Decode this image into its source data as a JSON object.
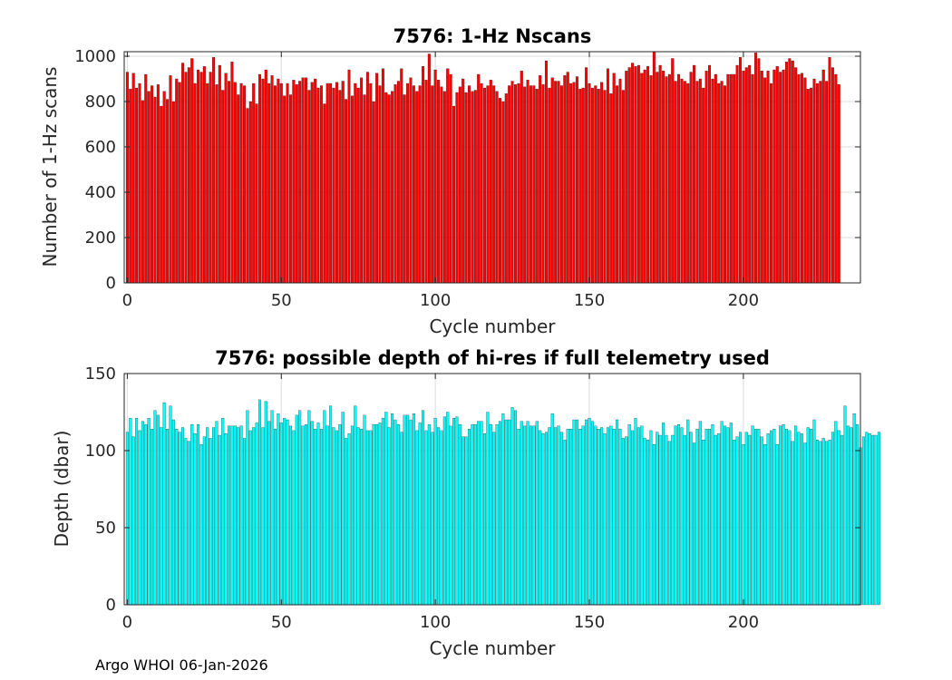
{
  "footer": "Argo WHOI 06-Jan-2026",
  "chart_data": [
    {
      "type": "bar",
      "title": "7576: 1-Hz Nscans",
      "xlabel": "Cycle number",
      "ylabel": "Number of 1-Hz scans",
      "xlim": [
        -1,
        238
      ],
      "ylim": [
        0,
        1020
      ],
      "xticks": [
        0,
        50,
        100,
        150,
        200
      ],
      "yticks": [
        0,
        200,
        400,
        600,
        800,
        1000
      ],
      "grid": true,
      "color": "#ff0000",
      "edge_color": "#000000",
      "x_start": 0,
      "values": [
        930,
        855,
        925,
        860,
        880,
        805,
        920,
        845,
        870,
        820,
        875,
        780,
        845,
        810,
        915,
        800,
        900,
        885,
        970,
        930,
        950,
        990,
        880,
        940,
        930,
        955,
        880,
        930,
        995,
        875,
        960,
        850,
        925,
        890,
        975,
        885,
        830,
        880,
        870,
        770,
        800,
        880,
        790,
        920,
        900,
        940,
        880,
        915,
        870,
        900,
        880,
        825,
        880,
        830,
        895,
        875,
        890,
        905,
        905,
        850,
        885,
        900,
        860,
        870,
        790,
        880,
        880,
        860,
        885,
        850,
        890,
        810,
        940,
        825,
        880,
        860,
        905,
        830,
        930,
        880,
        800,
        925,
        870,
        945,
        840,
        830,
        845,
        875,
        890,
        945,
        830,
        880,
        905,
        870,
        845,
        870,
        955,
        895,
        1010,
        870,
        940,
        895,
        865,
        845,
        945,
        920,
        780,
        840,
        865,
        900,
        840,
        870,
        845,
        850,
        920,
        880,
        860,
        870,
        895,
        870,
        845,
        815,
        800,
        835,
        870,
        890,
        875,
        880,
        935,
        865,
        895,
        870,
        870,
        855,
        915,
        875,
        980,
        860,
        905,
        890,
        890,
        870,
        915,
        930,
        880,
        885,
        910,
        855,
        860,
        950,
        880,
        860,
        870,
        855,
        885,
        850,
        945,
        835,
        925,
        870,
        900,
        850,
        935,
        950,
        970,
        955,
        960,
        925,
        940,
        955,
        915,
        1025,
        930,
        960,
        935,
        910,
        920,
        990,
        890,
        920,
        900,
        890,
        880,
        930,
        960,
        890,
        900,
        860,
        935,
        960,
        900,
        920,
        880,
        890,
        870,
        920,
        920,
        920,
        960,
        995,
        935,
        950,
        960,
        920,
        1015,
        990,
        935,
        905,
        935,
        880,
        940,
        955,
        930,
        940,
        975,
        990,
        980,
        950,
        920,
        925,
        905,
        855,
        860,
        900,
        880,
        890,
        940,
        890,
        995,
        950,
        920,
        875
      ]
    },
    {
      "type": "bar",
      "title": "7576: possible depth of hi-res if full telemetry used",
      "xlabel": "Cycle number",
      "ylabel": "Depth (dbar)",
      "xlim": [
        -1,
        238
      ],
      "ylim": [
        0,
        150
      ],
      "xticks": [
        0,
        50,
        100,
        150,
        200
      ],
      "yticks": [
        0,
        50,
        100,
        150
      ],
      "grid": true,
      "color": "#00ffff",
      "edge_color": "#000000",
      "x_start": 0,
      "values": [
        112,
        121,
        109,
        121,
        113,
        119,
        117,
        121,
        114,
        126,
        123,
        115,
        131,
        114,
        129,
        120,
        114,
        112,
        115,
        108,
        106,
        117,
        111,
        117,
        104,
        109,
        115,
        108,
        115,
        119,
        110,
        121,
        111,
        116,
        116,
        116,
        115,
        116,
        108,
        126,
        113,
        115,
        118,
        133,
        115,
        132,
        119,
        126,
        114,
        124,
        118,
        121,
        120,
        116,
        113,
        123,
        126,
        116,
        117,
        126,
        119,
        114,
        118,
        114,
        126,
        116,
        129,
        115,
        113,
        117,
        125,
        108,
        111,
        116,
        129,
        115,
        114,
        123,
        113,
        113,
        117,
        117,
        118,
        121,
        125,
        115,
        124,
        120,
        117,
        112,
        123,
        123,
        120,
        124,
        113,
        118,
        126,
        113,
        117,
        112,
        121,
        115,
        113,
        122,
        125,
        116,
        121,
        122,
        117,
        109,
        109,
        114,
        117,
        117,
        119,
        119,
        111,
        125,
        117,
        112,
        117,
        119,
        124,
        120,
        120,
        128,
        126,
        114,
        119,
        116,
        119,
        116,
        116,
        119,
        113,
        111,
        112,
        115,
        124,
        115,
        116,
        112,
        107,
        114,
        114,
        120,
        120,
        114,
        116,
        120,
        121,
        119,
        116,
        114,
        115,
        111,
        115,
        116,
        114,
        120,
        114,
        108,
        109,
        117,
        113,
        121,
        115,
        116,
        108,
        107,
        113,
        104,
        112,
        110,
        118,
        110,
        106,
        110,
        116,
        117,
        115,
        110,
        120,
        112,
        105,
        114,
        119,
        107,
        114,
        114,
        117,
        110,
        111,
        119,
        116,
        115,
        118,
        107,
        109,
        112,
        104,
        112,
        110,
        116,
        114,
        114,
        109,
        104,
        111,
        113,
        114,
        104,
        116,
        117,
        114,
        113,
        106,
        116,
        112,
        111,
        105,
        115,
        114,
        120,
        107,
        106,
        108,
        106,
        107,
        112,
        119,
        113,
        110,
        129,
        116,
        115,
        124,
        117,
        102,
        109,
        112,
        111,
        110,
        110,
        112
      ]
    }
  ]
}
